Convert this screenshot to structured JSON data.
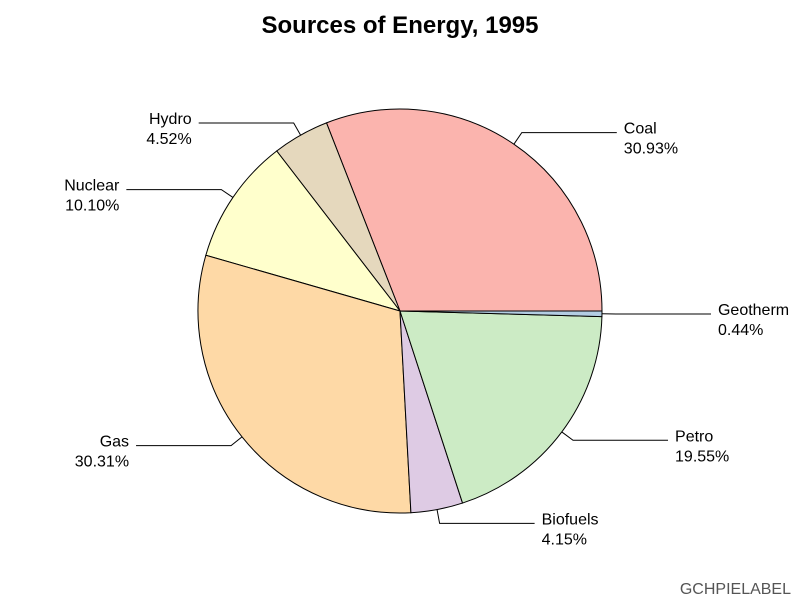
{
  "chart_data": {
    "type": "pie",
    "title": "Sources of Energy, 1995",
    "footnote": "GCHPIELABEL",
    "slices": [
      {
        "name": "Coal",
        "value": 30.93,
        "value_label": "30.93%",
        "color": "#fbb4ae"
      },
      {
        "name": "Hydro",
        "value": 4.52,
        "value_label": "4.52%",
        "color": "#e5d8bd"
      },
      {
        "name": "Nuclear",
        "value": 10.1,
        "value_label": "10.10%",
        "color": "#ffffcc"
      },
      {
        "name": "Gas",
        "value": 30.31,
        "value_label": "30.31%",
        "color": "#fed9a6"
      },
      {
        "name": "Biofuels",
        "value": 4.15,
        "value_label": "4.15%",
        "color": "#decbe4"
      },
      {
        "name": "Petro",
        "value": 19.55,
        "value_label": "19.55%",
        "color": "#ccebc5"
      },
      {
        "name": "Geotherm",
        "value": 0.44,
        "value_label": "0.44%",
        "color": "#b3cde3"
      }
    ]
  }
}
